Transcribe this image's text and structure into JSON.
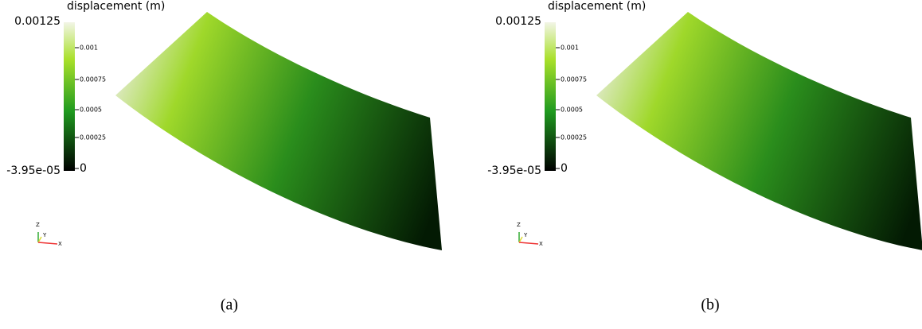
{
  "panels": [
    {
      "caption": "(a)",
      "colorbar": {
        "title": "displacement (m)",
        "max_label": "0.00125",
        "min_label": "-3.95e-05",
        "ticks": [
          "0.001",
          "0.00075",
          "0.0005",
          "0.00025",
          "0"
        ]
      },
      "axes": [
        "Z",
        "Y",
        "X"
      ]
    },
    {
      "caption": "(b)",
      "colorbar": {
        "title": "displacement (m)",
        "max_label": "0.00125",
        "min_label": "-3.95e-05",
        "ticks": [
          "0.001",
          "0.00075",
          "0.0005",
          "0.00025",
          "0"
        ]
      },
      "axes": [
        "Z",
        "Y",
        "X"
      ]
    }
  ]
}
